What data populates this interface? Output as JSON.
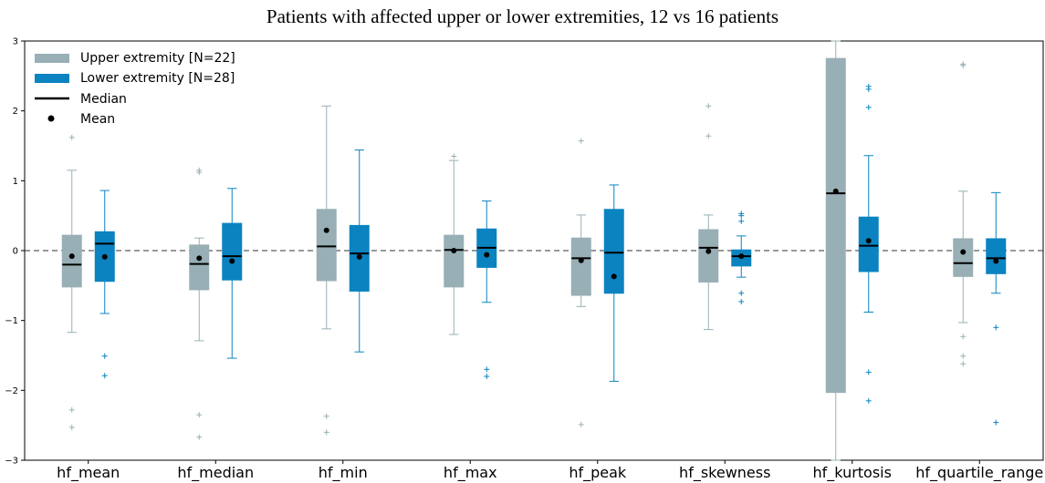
{
  "chart_data": {
    "type": "box",
    "title": "Patients with affected upper or lower extremities, 12 vs 16 patients",
    "xlabel": "",
    "ylabel": "",
    "ylim": [
      -3,
      3
    ],
    "yticks": [
      -3,
      -2,
      -1,
      0,
      1,
      2,
      3
    ],
    "reference_line": 0,
    "categories": [
      "hf_mean",
      "hf_median",
      "hf_min",
      "hf_max",
      "hf_peak",
      "hf_skewness",
      "hf_kurtosis",
      "hf_quartile_range"
    ],
    "series": [
      {
        "name": "Upper extremity [N=22]",
        "color": "#98afb5",
        "boxes": [
          {
            "q1": -0.52,
            "median": -0.2,
            "q3": 0.22,
            "whislo": -1.17,
            "whishi": 1.15,
            "mean": -0.08,
            "fliers": [
              1.62,
              -2.28,
              -2.53
            ]
          },
          {
            "q1": -0.56,
            "median": -0.19,
            "q3": 0.08,
            "whislo": -1.29,
            "whishi": 0.18,
            "mean": -0.11,
            "fliers": [
              1.15,
              1.12,
              -2.35,
              -2.67
            ]
          },
          {
            "q1": -0.43,
            "median": 0.06,
            "q3": 0.59,
            "whislo": -1.12,
            "whishi": 2.07,
            "mean": 0.29,
            "fliers": [
              -2.37,
              -2.6
            ]
          },
          {
            "q1": -0.52,
            "median": 0.01,
            "q3": 0.22,
            "whislo": -1.2,
            "whishi": 1.29,
            "mean": 0.0,
            "fliers": [
              1.35
            ]
          },
          {
            "q1": -0.64,
            "median": -0.11,
            "q3": 0.18,
            "whislo": -0.8,
            "whishi": 0.51,
            "mean": -0.14,
            "fliers": [
              1.57,
              -2.49
            ]
          },
          {
            "q1": -0.45,
            "median": 0.04,
            "q3": 0.3,
            "whislo": -1.13,
            "whishi": 0.51,
            "mean": -0.01,
            "fliers": [
              2.07,
              1.64
            ]
          },
          {
            "q1": -2.03,
            "median": 0.82,
            "q3": 2.75,
            "whislo": -3.0,
            "whishi": 3.0,
            "mean": 0.85,
            "fliers": []
          },
          {
            "q1": -0.37,
            "median": -0.18,
            "q3": 0.17,
            "whislo": -1.03,
            "whishi": 0.85,
            "mean": -0.02,
            "fliers": [
              2.67,
              2.65,
              -1.23,
              -1.51,
              -1.62
            ]
          }
        ]
      },
      {
        "name": "Lower extremity [N=28]",
        "color": "#0b83c0",
        "boxes": [
          {
            "q1": -0.44,
            "median": 0.1,
            "q3": 0.27,
            "whislo": -0.9,
            "whishi": 0.86,
            "mean": -0.09,
            "fliers": [
              -1.51,
              -1.79
            ]
          },
          {
            "q1": -0.42,
            "median": -0.08,
            "q3": 0.39,
            "whislo": -1.54,
            "whishi": 0.89,
            "mean": -0.15,
            "fliers": []
          },
          {
            "q1": -0.58,
            "median": -0.04,
            "q3": 0.36,
            "whislo": -1.45,
            "whishi": 1.44,
            "mean": -0.09,
            "fliers": []
          },
          {
            "q1": -0.24,
            "median": 0.04,
            "q3": 0.31,
            "whislo": -0.74,
            "whishi": 0.71,
            "mean": -0.06,
            "fliers": [
              -1.7,
              -1.8
            ]
          },
          {
            "q1": -0.61,
            "median": -0.03,
            "q3": 0.59,
            "whislo": -1.87,
            "whishi": 0.94,
            "mean": -0.37,
            "fliers": []
          },
          {
            "q1": -0.22,
            "median": -0.08,
            "q3": 0.01,
            "whislo": -0.38,
            "whishi": 0.21,
            "mean": -0.08,
            "fliers": [
              0.53,
              0.5,
              0.42,
              -0.61,
              -0.73
            ]
          },
          {
            "q1": -0.3,
            "median": 0.07,
            "q3": 0.48,
            "whislo": -0.88,
            "whishi": 1.36,
            "mean": 0.14,
            "fliers": [
              2.35,
              2.31,
              2.05,
              -1.74,
              -2.15
            ]
          },
          {
            "q1": -0.33,
            "median": -0.11,
            "q3": 0.17,
            "whislo": -0.61,
            "whishi": 0.83,
            "mean": -0.15,
            "fliers": [
              -1.1,
              -2.46
            ]
          }
        ]
      }
    ],
    "legend": {
      "placement": "top-left",
      "median_label": "Median",
      "mean_label": "Mean"
    },
    "colors": {
      "median": "#000000",
      "mean": "#000000",
      "reference_line": "#333333"
    }
  }
}
